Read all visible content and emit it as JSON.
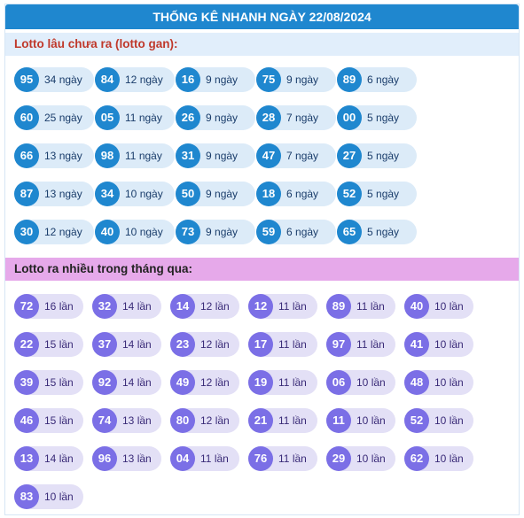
{
  "header": {
    "title": "THỐNG KÊ NHANH NGÀY 22/08/2024"
  },
  "gan": {
    "title": "Lotto lâu chưa ra (lotto gan):",
    "unit": "ngày",
    "rows": [
      [
        {
          "num": "95",
          "count": "34"
        },
        {
          "num": "84",
          "count": "12"
        },
        {
          "num": "16",
          "count": "9"
        },
        {
          "num": "75",
          "count": "9"
        },
        {
          "num": "89",
          "count": "6"
        }
      ],
      [
        {
          "num": "60",
          "count": "25"
        },
        {
          "num": "05",
          "count": "11"
        },
        {
          "num": "26",
          "count": "9"
        },
        {
          "num": "28",
          "count": "7"
        },
        {
          "num": "00",
          "count": "5"
        }
      ],
      [
        {
          "num": "66",
          "count": "13"
        },
        {
          "num": "98",
          "count": "11"
        },
        {
          "num": "31",
          "count": "9"
        },
        {
          "num": "47",
          "count": "7"
        },
        {
          "num": "27",
          "count": "5"
        }
      ],
      [
        {
          "num": "87",
          "count": "13"
        },
        {
          "num": "34",
          "count": "10"
        },
        {
          "num": "50",
          "count": "9"
        },
        {
          "num": "18",
          "count": "6"
        },
        {
          "num": "52",
          "count": "5"
        }
      ],
      [
        {
          "num": "30",
          "count": "12"
        },
        {
          "num": "40",
          "count": "10"
        },
        {
          "num": "73",
          "count": "9"
        },
        {
          "num": "59",
          "count": "6"
        },
        {
          "num": "65",
          "count": "5"
        }
      ]
    ]
  },
  "nhieu": {
    "title": "Lotto ra nhiều trong tháng qua:",
    "unit": "lần",
    "rows": [
      [
        {
          "num": "72",
          "count": "16"
        },
        {
          "num": "32",
          "count": "14"
        },
        {
          "num": "14",
          "count": "12"
        },
        {
          "num": "12",
          "count": "11"
        },
        {
          "num": "89",
          "count": "11"
        },
        {
          "num": "40",
          "count": "10"
        }
      ],
      [
        {
          "num": "22",
          "count": "15"
        },
        {
          "num": "37",
          "count": "14"
        },
        {
          "num": "23",
          "count": "12"
        },
        {
          "num": "17",
          "count": "11"
        },
        {
          "num": "97",
          "count": "11"
        },
        {
          "num": "41",
          "count": "10"
        }
      ],
      [
        {
          "num": "39",
          "count": "15"
        },
        {
          "num": "92",
          "count": "14"
        },
        {
          "num": "49",
          "count": "12"
        },
        {
          "num": "19",
          "count": "11"
        },
        {
          "num": "06",
          "count": "10"
        },
        {
          "num": "48",
          "count": "10"
        }
      ],
      [
        {
          "num": "46",
          "count": "15"
        },
        {
          "num": "74",
          "count": "13"
        },
        {
          "num": "80",
          "count": "12"
        },
        {
          "num": "21",
          "count": "11"
        },
        {
          "num": "11",
          "count": "10"
        },
        {
          "num": "52",
          "count": "10"
        }
      ],
      [
        {
          "num": "13",
          "count": "14"
        },
        {
          "num": "96",
          "count": "13"
        },
        {
          "num": "04",
          "count": "11"
        },
        {
          "num": "76",
          "count": "11"
        },
        {
          "num": "29",
          "count": "10"
        },
        {
          "num": "62",
          "count": "10"
        }
      ],
      [
        {
          "num": "83",
          "count": "10"
        }
      ]
    ]
  }
}
